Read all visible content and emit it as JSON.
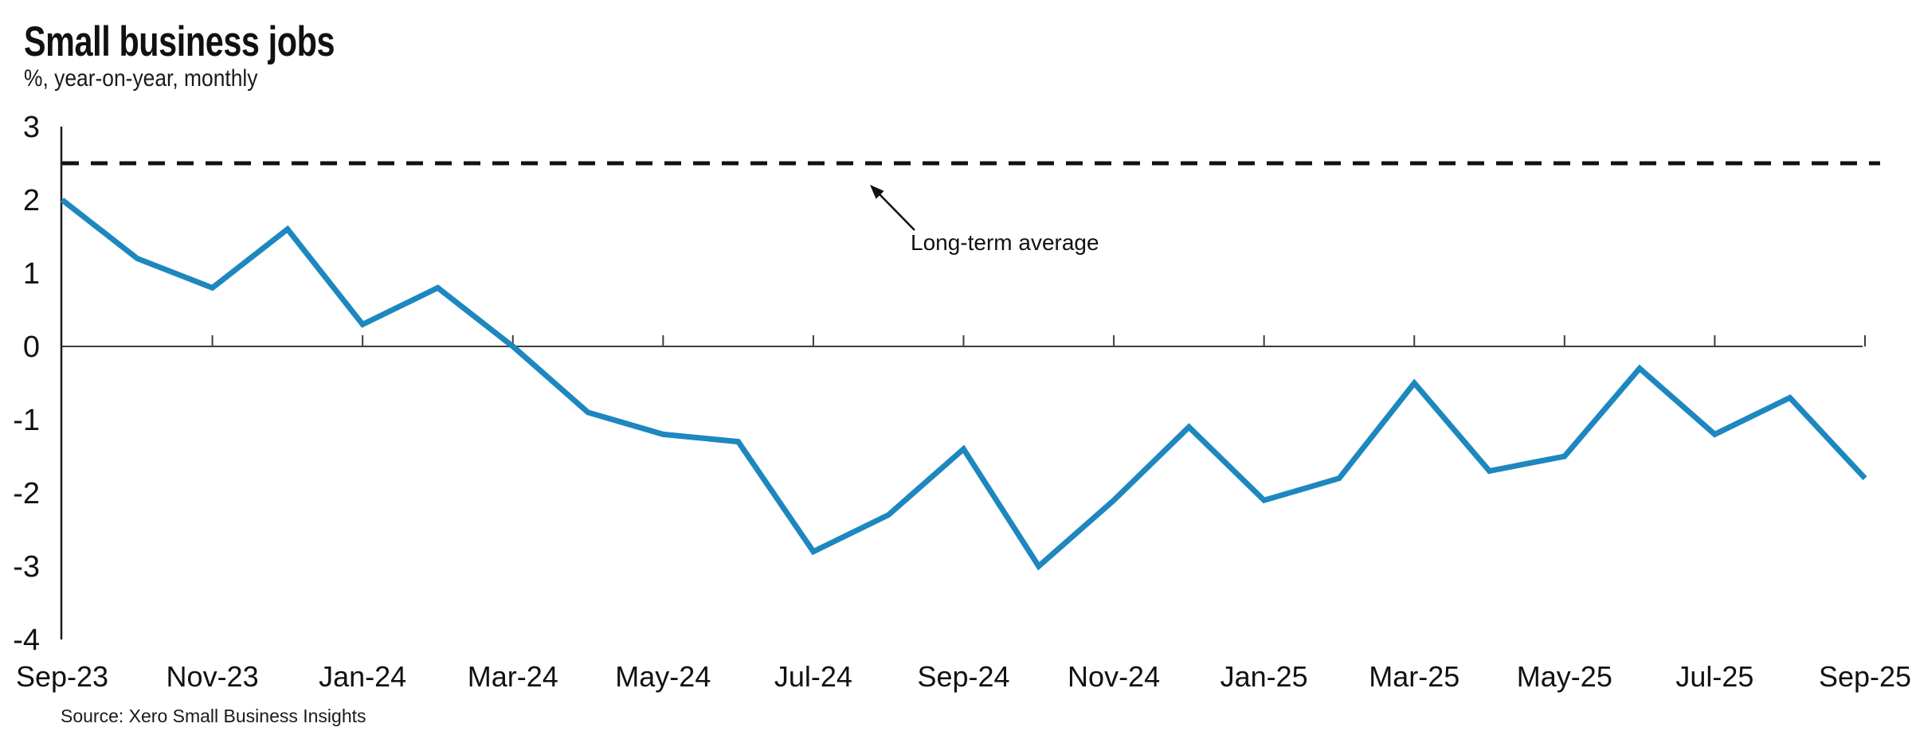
{
  "header": {
    "title": "Small business jobs",
    "subtitle": "%, year-on-year, monthly"
  },
  "chart_data": {
    "type": "line",
    "x": [
      "Sep-23",
      "Oct-23",
      "Nov-23",
      "Dec-23",
      "Jan-24",
      "Feb-24",
      "Mar-24",
      "Apr-24",
      "May-24",
      "Jun-24",
      "Jul-24",
      "Aug-24",
      "Sep-24",
      "Oct-24",
      "Nov-24",
      "Dec-24",
      "Jan-25",
      "Feb-25",
      "Mar-25",
      "Apr-25",
      "May-25",
      "Jun-25",
      "Jul-25",
      "Aug-25",
      "Sep-25"
    ],
    "values": [
      2.0,
      1.2,
      0.8,
      1.6,
      0.3,
      0.8,
      0.0,
      -0.9,
      -1.2,
      -1.3,
      -2.8,
      -2.3,
      -1.4,
      -3.0,
      -2.1,
      -1.1,
      -2.1,
      -1.8,
      -0.5,
      -1.7,
      -1.5,
      -0.3,
      -1.2,
      -0.7,
      -1.8
    ],
    "reference_line": {
      "label": "Long-term average",
      "value": 2.5
    },
    "ylim": [
      -4,
      3
    ],
    "yticks": [
      3,
      2,
      1,
      0,
      -1,
      -2,
      -3,
      -4
    ],
    "xtick_labels": [
      "Sep-23",
      "Nov-23",
      "Jan-24",
      "Mar-24",
      "May-24",
      "Jul-24",
      "Sep-24",
      "Nov-24",
      "Jan-25",
      "Mar-25",
      "May-25",
      "Jul-25",
      "Sep-25"
    ],
    "line_color": "#1d87bf",
    "reference_line_color": "#111111",
    "axis_color": "#3d3d3d",
    "grid": false,
    "legend": "none"
  },
  "footer": {
    "source": "Source: Xero Small Business Insights"
  }
}
